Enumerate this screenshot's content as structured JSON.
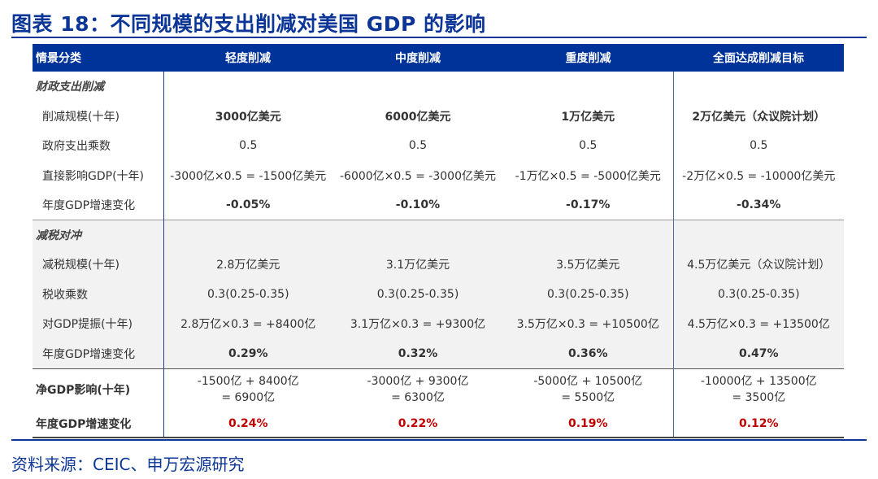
{
  "title": "图表 18：不同规模的支出削减对美国 GDP 的影响",
  "table": {
    "headers": [
      "情景分类",
      "轻度削减",
      "中度削减",
      "重度削减",
      "全面达成削减目标"
    ],
    "sections": [
      {
        "name": "财政支出削减",
        "rows": [
          {
            "label": "削减规模(十年)",
            "values": [
              "3000亿美元",
              "6000亿美元",
              "1万亿美元",
              "2万亿美元（众议院计划）"
            ],
            "bold": true
          },
          {
            "label": "政府支出乘数",
            "values": [
              "0.5",
              "0.5",
              "0.5",
              "0.5"
            ],
            "bold": false
          },
          {
            "label": "直接影响GDP(十年)",
            "values": [
              "-3000亿×0.5 = -1500亿美元",
              "-6000亿×0.5 = -3000亿美元",
              "-1万亿×0.5 = -5000亿美元",
              "-2万亿×0.5 = -10000亿美元"
            ],
            "bold": false
          },
          {
            "label": "年度GDP增速变化",
            "values": [
              "-0.05%",
              "-0.10%",
              "-0.17%",
              "-0.34%"
            ],
            "bold": true
          }
        ]
      },
      {
        "name": "减税对冲",
        "rows": [
          {
            "label": "减税规模(十年)",
            "values": [
              "2.8万亿美元",
              "3.1万亿美元",
              "3.5万亿美元",
              "4.5万亿美元（众议院计划）"
            ],
            "bold": false
          },
          {
            "label": "税收乘数",
            "values": [
              "0.3(0.25-0.35)",
              "0.3(0.25-0.35)",
              "0.3(0.25-0.35)",
              "0.3(0.25-0.35)"
            ],
            "bold": false
          },
          {
            "label": "对GDP提振(十年)",
            "values": [
              "2.8万亿×0.3 = +8400亿",
              "3.1万亿×0.3 = +9300亿",
              "3.5万亿×0.3 = +10500亿",
              "4.5万亿×0.3 = +13500亿"
            ],
            "bold": false
          },
          {
            "label": "年度GDP增速变化",
            "values": [
              "0.29%",
              "0.32%",
              "0.36%",
              "0.47%"
            ],
            "bold": true
          }
        ]
      }
    ],
    "net": {
      "impact_label": "净GDP影响(十年)",
      "impact_values": [
        {
          "line1": "-1500亿 + 8400亿",
          "line2": "= 6900亿"
        },
        {
          "line1": "-3000亿 + 9300亿",
          "line2": "= 6300亿"
        },
        {
          "line1": "-5000亿 + 10500亿",
          "line2": "= 5500亿"
        },
        {
          "line1": "-10000亿 + 13500亿",
          "line2": "= 3500亿"
        }
      ],
      "rate_label": "年度GDP增速变化",
      "rate_values": [
        "0.24%",
        "0.22%",
        "0.19%",
        "0.12%"
      ]
    }
  },
  "source": "资料来源：CEIC、申万宏源研究",
  "colors": {
    "brand_blue": "#0b3596",
    "header_bg": "#003399",
    "highlight_red": "#c00000",
    "section_grey": "#f2f2f2"
  }
}
